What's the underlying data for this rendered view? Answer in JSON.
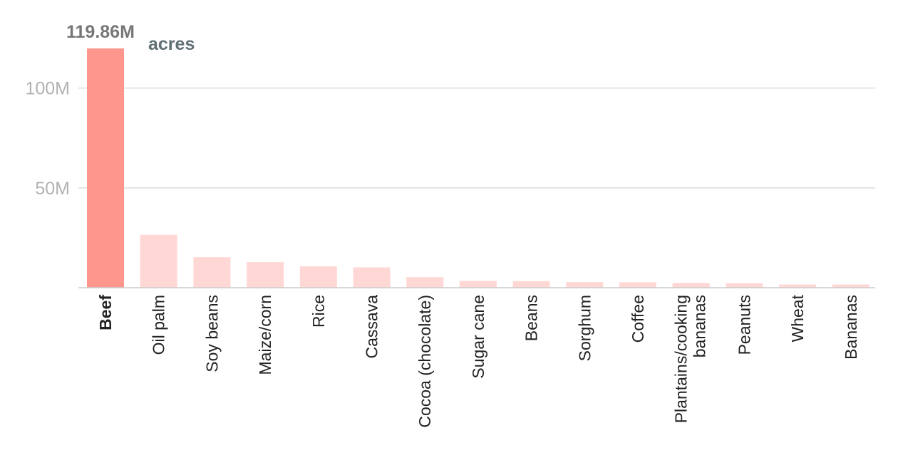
{
  "chart_data": {
    "type": "bar",
    "categories": [
      "Beef",
      "Oil palm",
      "Soy beans",
      "Maize/corn",
      "Rice",
      "Cassava",
      "Cocoa (chocolate)",
      "Sugar cane",
      "Beans",
      "Sorghum",
      "Coffee",
      "Plantains/cooking bananas",
      "Peanuts",
      "Wheat",
      "Bananas"
    ],
    "values": [
      119.86,
      26.5,
      15.3,
      12.8,
      10.7,
      10.2,
      5.3,
      3.4,
      3.3,
      2.8,
      2.7,
      2.4,
      2.3,
      1.6,
      1.6
    ],
    "value_unit": "M",
    "yticks": [
      {
        "value": 50,
        "label": "50M"
      },
      {
        "value": 100,
        "label": "100M"
      }
    ],
    "ylim": [
      0,
      119.86
    ],
    "highlight_index": 0,
    "annotation": {
      "value": "119.86M",
      "unit": "acres"
    },
    "grid": true,
    "colors": {
      "highlight": "#ff968d",
      "bar": "#ffd8d6",
      "grid": "#dddddd",
      "tick": "#b2b2b2"
    }
  }
}
